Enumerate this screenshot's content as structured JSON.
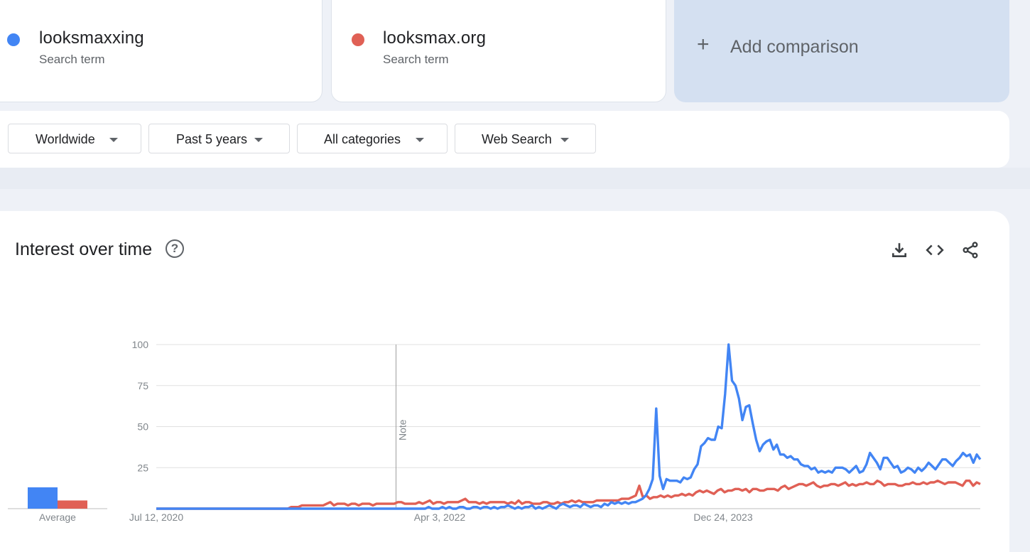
{
  "terms": [
    {
      "name": "looksmaxxing",
      "subtitle": "Search term",
      "color": "#4285f4"
    },
    {
      "name": "looksmax.org",
      "subtitle": "Search term",
      "color": "#e06055"
    }
  ],
  "add_comparison": {
    "icon": "plus-icon",
    "label": "Add comparison"
  },
  "filters": {
    "geo": "Worldwide",
    "time": "Past 5 years",
    "category": "All categories",
    "property": "Web Search"
  },
  "chart_section": {
    "title": "Interest over time",
    "icons": [
      "help-icon",
      "download-icon",
      "embed-icon",
      "share-icon"
    ]
  },
  "chart_data": {
    "type": "line",
    "y_ticks": [
      "100",
      "75",
      "50",
      "25"
    ],
    "ylim": [
      0,
      100
    ],
    "x_tick_labels": [
      "Jul 12, 2020",
      "Apr 3, 2022",
      "Dec 24, 2023"
    ],
    "note_label": "Note",
    "average_label": "Average",
    "averages": {
      "looksmaxxing": 13,
      "looksmax.org": 5
    },
    "series": [
      {
        "name": "looksmaxxing",
        "color": "#4285f4",
        "values": [
          0,
          0,
          0,
          0,
          0,
          0,
          0,
          0,
          0,
          0,
          0,
          0,
          0,
          0,
          0,
          0,
          0,
          0,
          0,
          0,
          0,
          0,
          0,
          0,
          0,
          0,
          0,
          0,
          0,
          0,
          0,
          0,
          0,
          0,
          0,
          0,
          0,
          0,
          0,
          0,
          0,
          0,
          0,
          0,
          0,
          0,
          0,
          0,
          0,
          0,
          0,
          0,
          0,
          0,
          0,
          0,
          0,
          0,
          0,
          0,
          0,
          0,
          0,
          0,
          0,
          0,
          0,
          0,
          0,
          0,
          0,
          0,
          0,
          0,
          0,
          0,
          0,
          0,
          0,
          1,
          0,
          0,
          0,
          1,
          0,
          1,
          0,
          0,
          1,
          1,
          0,
          0,
          1,
          1,
          0,
          1,
          1,
          0,
          1,
          0,
          1,
          1,
          2,
          1,
          0,
          1,
          0,
          1,
          1,
          2,
          0,
          1,
          0,
          1,
          2,
          1,
          0,
          2,
          3,
          2,
          1,
          2,
          2,
          1,
          3,
          2,
          1,
          2,
          2,
          1,
          3,
          2,
          4,
          3,
          4,
          3,
          4,
          3,
          4,
          4,
          5,
          6,
          8,
          12,
          18,
          61,
          20,
          12,
          18,
          17,
          17,
          17,
          16,
          19,
          18,
          19,
          24,
          27,
          38,
          40,
          43,
          42,
          42,
          50,
          49,
          70,
          100,
          78,
          75,
          67,
          54,
          62,
          63,
          52,
          42,
          35,
          39,
          41,
          42,
          36,
          39,
          33,
          33,
          31,
          32,
          30,
          30,
          27,
          26,
          26,
          24,
          25,
          22,
          23,
          22,
          23,
          22,
          25,
          25,
          25,
          24,
          22,
          24,
          26,
          22,
          23,
          27,
          34,
          31,
          28,
          24,
          31,
          31,
          28,
          25,
          26,
          22,
          23,
          25,
          24,
          22,
          25,
          23,
          25,
          28,
          26,
          24,
          27,
          30,
          30,
          28,
          26,
          29,
          31,
          34,
          32,
          33,
          28,
          33,
          30
        ]
      },
      {
        "name": "looksmax.org",
        "color": "#e06055",
        "values": [
          0,
          0,
          0,
          0,
          0,
          0,
          0,
          0,
          0,
          0,
          0,
          0,
          0,
          0,
          0,
          0,
          0,
          0,
          0,
          0,
          0,
          0,
          0,
          0,
          0,
          0,
          0,
          0,
          0,
          0,
          0,
          0,
          0,
          0,
          0,
          0,
          0,
          0,
          1,
          1,
          1,
          2,
          2,
          2,
          2,
          2,
          2,
          2,
          3,
          4,
          2,
          3,
          3,
          3,
          2,
          3,
          3,
          2,
          3,
          3,
          3,
          2,
          3,
          3,
          3,
          3,
          3,
          3,
          4,
          4,
          3,
          3,
          3,
          3,
          4,
          3,
          4,
          5,
          3,
          4,
          4,
          3,
          4,
          4,
          4,
          4,
          5,
          6,
          4,
          4,
          4,
          3,
          4,
          3,
          4,
          4,
          4,
          4,
          4,
          3,
          4,
          3,
          5,
          3,
          4,
          4,
          3,
          3,
          3,
          4,
          4,
          3,
          3,
          4,
          3,
          4,
          4,
          5,
          4,
          5,
          4,
          4,
          4,
          4,
          5,
          5,
          5,
          5,
          5,
          5,
          5,
          6,
          6,
          6,
          7,
          8,
          14,
          7,
          8,
          6,
          7,
          7,
          8,
          7,
          8,
          7,
          8,
          8,
          9,
          8,
          9,
          8,
          10,
          11,
          10,
          11,
          10,
          9,
          11,
          12,
          10,
          11,
          11,
          12,
          12,
          11,
          12,
          10,
          12,
          12,
          11,
          11,
          12,
          12,
          12,
          11,
          13,
          14,
          12,
          13,
          14,
          15,
          15,
          14,
          15,
          16,
          14,
          13,
          14,
          14,
          15,
          15,
          14,
          15,
          16,
          14,
          15,
          14,
          15,
          15,
          16,
          15,
          15,
          17,
          16,
          14,
          15,
          15,
          15,
          14,
          14,
          15,
          15,
          16,
          15,
          15,
          16,
          15,
          16,
          16,
          17,
          16,
          15,
          16,
          16,
          16,
          15,
          14,
          17,
          17,
          14,
          16,
          15
        ]
      }
    ]
  }
}
